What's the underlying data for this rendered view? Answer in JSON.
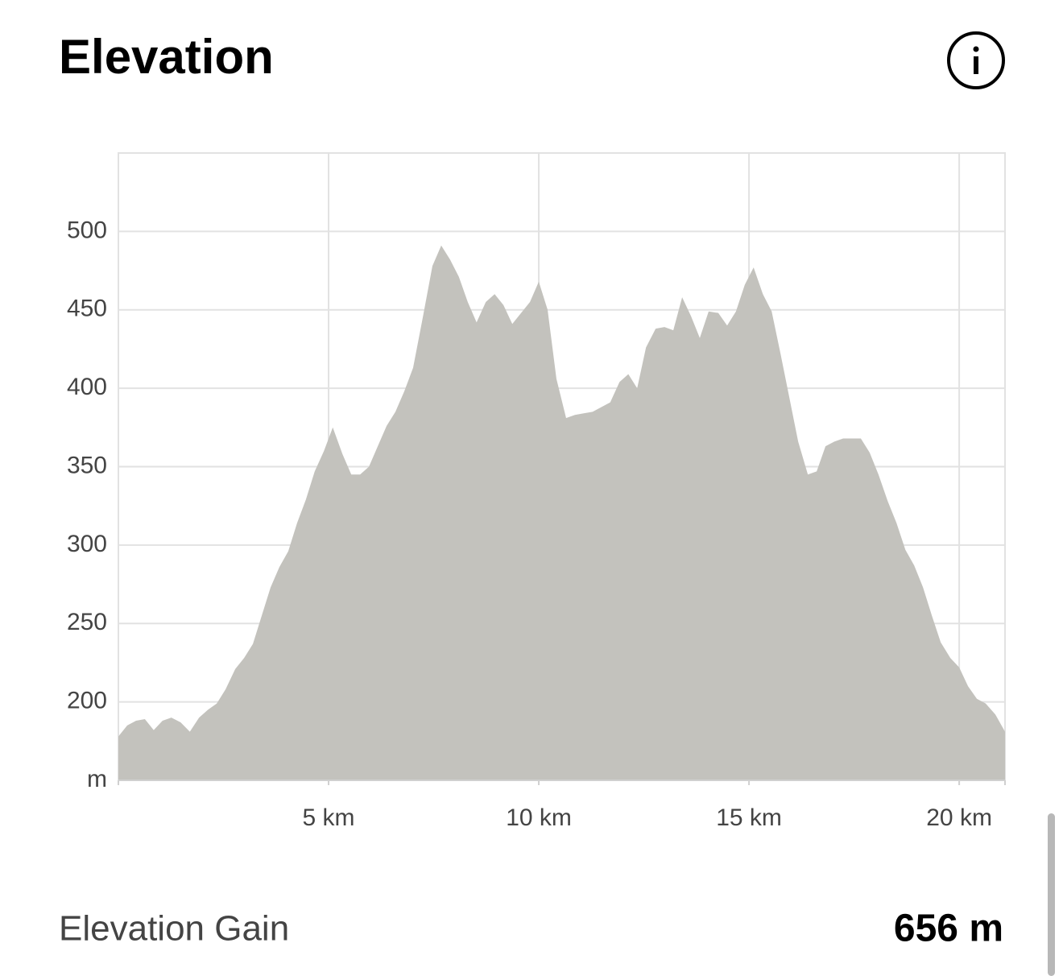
{
  "header": {
    "title": "Elevation"
  },
  "chart_data": {
    "type": "area",
    "x": [
      0,
      0.21,
      0.42,
      0.63,
      0.84,
      1.05,
      1.26,
      1.48,
      1.7,
      1.92,
      2.13,
      2.34,
      2.55,
      2.78,
      2.99,
      3.2,
      3.41,
      3.62,
      3.83,
      4.04,
      4.25,
      4.46,
      4.67,
      4.89,
      5.1,
      5.33,
      5.54,
      5.75,
      5.96,
      6.17,
      6.38,
      6.59,
      6.8,
      7.01,
      7.24,
      7.47,
      7.68,
      7.89,
      8.1,
      8.31,
      8.52,
      8.74,
      8.95,
      9.16,
      9.37,
      9.58,
      9.79,
      10.0,
      10.21,
      10.42,
      10.65,
      10.86,
      11.07,
      11.28,
      11.49,
      11.7,
      11.92,
      12.13,
      12.34,
      12.55,
      12.78,
      12.99,
      13.2,
      13.41,
      13.62,
      13.83,
      14.04,
      14.27,
      14.48,
      14.69,
      14.9,
      15.11,
      15.33,
      15.54,
      15.75,
      15.96,
      16.17,
      16.4,
      16.61,
      16.82,
      17.03,
      17.24,
      17.45,
      17.66,
      17.87,
      18.08,
      18.3,
      18.51,
      18.72,
      18.93,
      19.14,
      19.35,
      19.56,
      19.79,
      20.0,
      20.21,
      20.42,
      20.63,
      20.86,
      21.09
    ],
    "values": [
      178,
      185,
      188,
      189,
      182,
      188,
      190,
      187,
      181,
      190,
      195,
      199,
      208,
      221,
      228,
      237,
      255,
      273,
      286,
      296,
      314,
      329,
      347,
      360,
      375,
      358,
      345,
      345,
      350,
      363,
      376,
      385,
      398,
      413,
      445,
      478,
      491,
      482,
      471,
      455,
      442,
      455,
      460,
      453,
      441,
      448,
      455,
      468,
      450,
      406,
      381,
      383,
      384,
      385,
      388,
      391,
      404,
      409,
      400,
      426,
      438,
      439,
      437,
      458,
      446,
      432,
      449,
      448,
      440,
      449,
      466,
      477,
      460,
      449,
      422,
      394,
      366,
      345,
      347,
      363,
      366,
      368,
      368,
      368,
      359,
      345,
      328,
      314,
      297,
      287,
      273,
      255,
      238,
      228,
      222,
      210,
      202,
      199,
      192,
      181
    ],
    "color": "#c3c2bd",
    "xlim": [
      0,
      21.09
    ],
    "ylim": [
      150,
      550
    ],
    "xticks": [
      {
        "value": 5,
        "label": "5 km"
      },
      {
        "value": 10,
        "label": "10 km"
      },
      {
        "value": 15,
        "label": "15 km"
      },
      {
        "value": 20,
        "label": "20 km"
      }
    ],
    "yticks": [
      {
        "value": 150,
        "label": "m"
      },
      200,
      250,
      300,
      350,
      400,
      450,
      500
    ],
    "grid": true
  },
  "stats": {
    "label": "Elevation Gain",
    "value": "656 m"
  }
}
